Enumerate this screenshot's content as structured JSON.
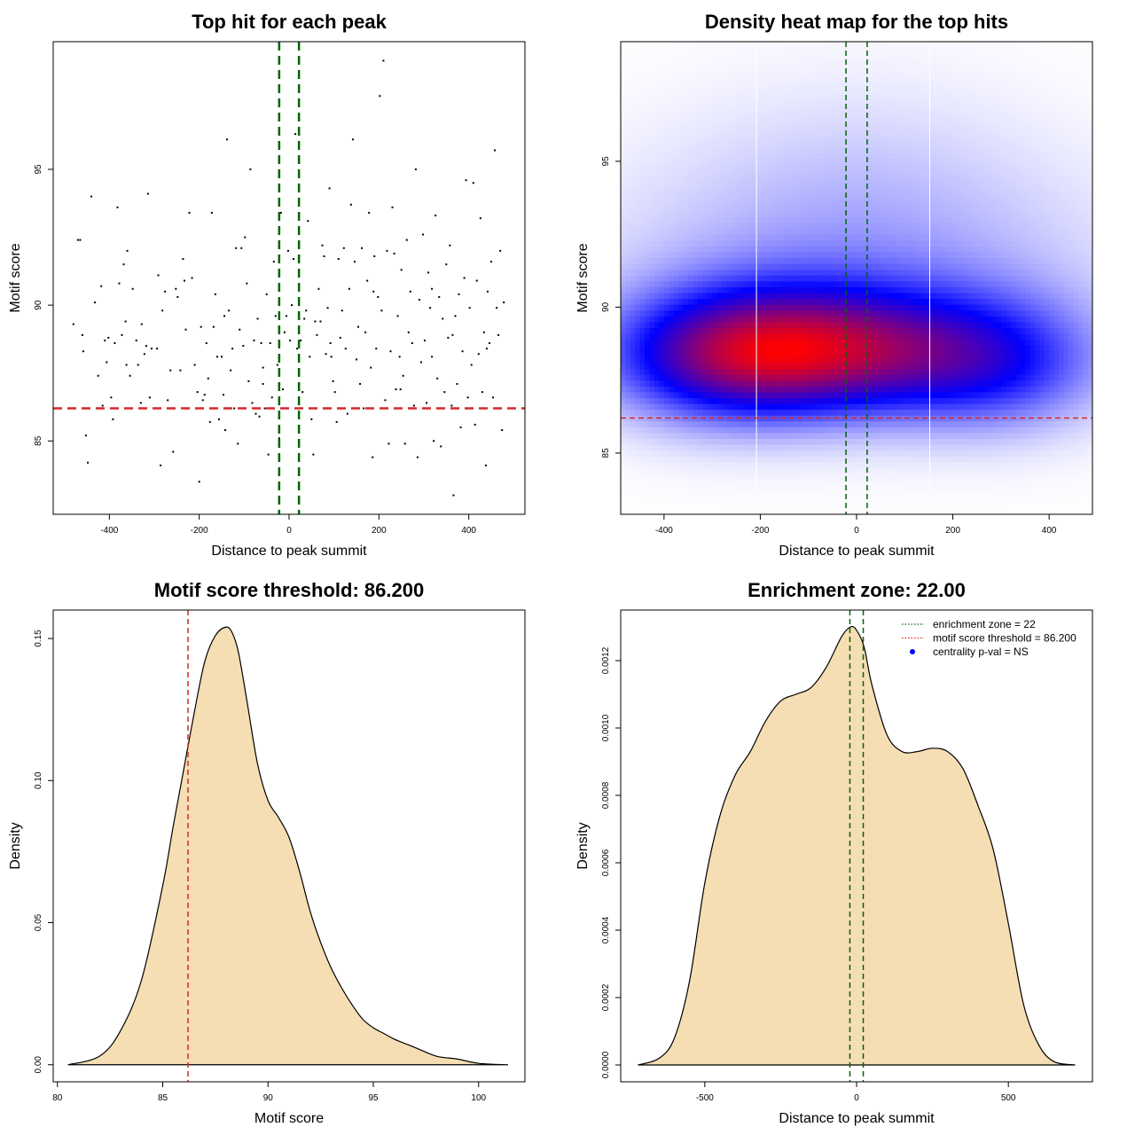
{
  "chart_data": [
    {
      "type": "scatter",
      "title": "Top hit for each peak",
      "xlabel": "Distance to peak summit",
      "ylabel": "Motif score",
      "xlim": [
        -525,
        525
      ],
      "ylim": [
        82.3,
        99.7
      ],
      "xticks": [
        -400,
        -200,
        0,
        200,
        400
      ],
      "yticks": [
        85,
        90,
        95
      ],
      "enrichment_zone_bounds": [
        -22,
        22
      ],
      "threshold": 86.2,
      "colors": {
        "points": "#000000",
        "zone": "#006400",
        "threshold": "#d62728"
      },
      "points": [
        [
          -480,
          89.3
        ],
        [
          -470,
          92.4
        ],
        [
          -465,
          92.4
        ],
        [
          -460,
          88.9
        ],
        [
          -458,
          88.3
        ],
        [
          -452,
          85.2
        ],
        [
          -448,
          84.2
        ],
        [
          -440,
          94.0
        ],
        [
          -432,
          90.1
        ],
        [
          -425,
          87.4
        ],
        [
          -418,
          90.7
        ],
        [
          -410,
          88.7
        ],
        [
          -406,
          87.9
        ],
        [
          -402,
          88.8
        ],
        [
          -396,
          86.6
        ],
        [
          -392,
          85.8
        ],
        [
          -388,
          88.6
        ],
        [
          -382,
          93.6
        ],
        [
          -378,
          90.8
        ],
        [
          -372,
          88.9
        ],
        [
          -368,
          91.5
        ],
        [
          -364,
          89.4
        ],
        [
          -360,
          92.0
        ],
        [
          -354,
          87.4
        ],
        [
          -348,
          90.6
        ],
        [
          -340,
          88.7
        ],
        [
          -336,
          87.8
        ],
        [
          -330,
          86.4
        ],
        [
          -328,
          89.3
        ],
        [
          -322,
          88.2
        ],
        [
          -318,
          88.5
        ],
        [
          -314,
          94.1
        ],
        [
          -310,
          86.6
        ],
        [
          -306,
          88.4
        ],
        [
          -300,
          86.2
        ],
        [
          -294,
          88.4
        ],
        [
          -286,
          84.1
        ],
        [
          -282,
          89.8
        ],
        [
          -276,
          90.5
        ],
        [
          -270,
          86.5
        ],
        [
          -264,
          87.6
        ],
        [
          -258,
          84.6
        ],
        [
          -252,
          90.6
        ],
        [
          -248,
          90.3
        ],
        [
          -242,
          87.6
        ],
        [
          -236,
          91.7
        ],
        [
          -230,
          89.1
        ],
        [
          -222,
          93.4
        ],
        [
          -216,
          91.0
        ],
        [
          -210,
          87.8
        ],
        [
          -204,
          86.8
        ],
        [
          -200,
          83.5
        ],
        [
          -196,
          89.2
        ],
        [
          -192,
          86.5
        ],
        [
          -188,
          86.7
        ],
        [
          -184,
          88.6
        ],
        [
          -180,
          87.3
        ],
        [
          -176,
          85.7
        ],
        [
          -172,
          93.4
        ],
        [
          -168,
          89.2
        ],
        [
          -164,
          90.4
        ],
        [
          -160,
          88.1
        ],
        [
          -156,
          85.8
        ],
        [
          -150,
          88.1
        ],
        [
          -146,
          86.7
        ],
        [
          -142,
          85.4
        ],
        [
          -138,
          96.1
        ],
        [
          -134,
          89.8
        ],
        [
          -130,
          87.6
        ],
        [
          -126,
          88.4
        ],
        [
          -122,
          86.2
        ],
        [
          -118,
          92.1
        ],
        [
          -114,
          84.9
        ],
        [
          -110,
          89.1
        ],
        [
          -106,
          92.1
        ],
        [
          -102,
          88.5
        ],
        [
          -98,
          92.5
        ],
        [
          -94,
          90.8
        ],
        [
          -90,
          87.2
        ],
        [
          -86,
          95.0
        ],
        [
          -82,
          86.4
        ],
        [
          -78,
          88.7
        ],
        [
          -74,
          86.0
        ],
        [
          -70,
          89.5
        ],
        [
          -66,
          85.9
        ],
        [
          -62,
          88.6
        ],
        [
          -58,
          87.1
        ],
        [
          -54,
          86.2
        ],
        [
          -50,
          90.4
        ],
        [
          -46,
          84.5
        ],
        [
          -42,
          88.6
        ],
        [
          -38,
          86.6
        ],
        [
          -34,
          91.6
        ],
        [
          -30,
          89.6
        ],
        [
          -26,
          87.8
        ],
        [
          -22,
          85.1
        ],
        [
          -18,
          93.4
        ],
        [
          -14,
          86.9
        ],
        [
          -10,
          89.0
        ],
        [
          -6,
          89.6
        ],
        [
          -2,
          92.0
        ],
        [
          2,
          88.7
        ],
        [
          6,
          90.0
        ],
        [
          10,
          91.7
        ],
        [
          14,
          96.3
        ],
        [
          18,
          88.4
        ],
        [
          22,
          90.0
        ],
        [
          26,
          88.7
        ],
        [
          30,
          86.8
        ],
        [
          34,
          89.5
        ],
        [
          38,
          89.8
        ],
        [
          42,
          93.1
        ],
        [
          46,
          88.1
        ],
        [
          50,
          85.8
        ],
        [
          54,
          84.5
        ],
        [
          58,
          89.4
        ],
        [
          62,
          88.9
        ],
        [
          66,
          90.6
        ],
        [
          70,
          89.4
        ],
        [
          74,
          92.2
        ],
        [
          78,
          91.8
        ],
        [
          82,
          88.2
        ],
        [
          86,
          89.9
        ],
        [
          90,
          94.3
        ],
        [
          94,
          88.1
        ],
        [
          98,
          87.2
        ],
        [
          102,
          86.8
        ],
        [
          106,
          85.7
        ],
        [
          110,
          91.7
        ],
        [
          114,
          88.8
        ],
        [
          118,
          89.8
        ],
        [
          122,
          92.1
        ],
        [
          126,
          88.4
        ],
        [
          130,
          86.0
        ],
        [
          134,
          90.6
        ],
        [
          138,
          93.7
        ],
        [
          142,
          96.1
        ],
        [
          146,
          91.6
        ],
        [
          150,
          88.0
        ],
        [
          154,
          89.2
        ],
        [
          158,
          87.1
        ],
        [
          162,
          92.1
        ],
        [
          166,
          86.2
        ],
        [
          170,
          89.0
        ],
        [
          174,
          90.9
        ],
        [
          178,
          93.4
        ],
        [
          182,
          87.7
        ],
        [
          186,
          84.4
        ],
        [
          190,
          91.8
        ],
        [
          194,
          88.4
        ],
        [
          198,
          90.3
        ],
        [
          202,
          97.7
        ],
        [
          206,
          89.8
        ],
        [
          210,
          99.0
        ],
        [
          214,
          86.5
        ],
        [
          218,
          92.0
        ],
        [
          222,
          84.9
        ],
        [
          226,
          88.3
        ],
        [
          230,
          93.6
        ],
        [
          234,
          91.9
        ],
        [
          238,
          86.9
        ],
        [
          242,
          89.6
        ],
        [
          246,
          88.1
        ],
        [
          250,
          91.3
        ],
        [
          254,
          87.4
        ],
        [
          258,
          84.9
        ],
        [
          262,
          92.4
        ],
        [
          266,
          89.0
        ],
        [
          270,
          90.5
        ],
        [
          274,
          88.6
        ],
        [
          278,
          86.3
        ],
        [
          282,
          95.0
        ],
        [
          286,
          84.4
        ],
        [
          290,
          90.2
        ],
        [
          294,
          87.9
        ],
        [
          298,
          92.6
        ],
        [
          302,
          88.7
        ],
        [
          306,
          86.4
        ],
        [
          310,
          91.2
        ],
        [
          314,
          89.9
        ],
        [
          318,
          88.1
        ],
        [
          322,
          85.0
        ],
        [
          326,
          93.3
        ],
        [
          330,
          87.3
        ],
        [
          334,
          90.3
        ],
        [
          338,
          84.8
        ],
        [
          342,
          89.5
        ],
        [
          346,
          86.8
        ],
        [
          350,
          91.5
        ],
        [
          354,
          88.8
        ],
        [
          358,
          92.2
        ],
        [
          362,
          86.3
        ],
        [
          366,
          83.0
        ],
        [
          370,
          89.6
        ],
        [
          374,
          87.1
        ],
        [
          378,
          90.4
        ],
        [
          382,
          85.5
        ],
        [
          386,
          88.3
        ],
        [
          390,
          91.0
        ],
        [
          394,
          94.6
        ],
        [
          398,
          86.6
        ],
        [
          402,
          89.9
        ],
        [
          406,
          87.8
        ],
        [
          410,
          94.5
        ],
        [
          414,
          85.6
        ],
        [
          418,
          90.9
        ],
        [
          422,
          88.2
        ],
        [
          426,
          93.2
        ],
        [
          430,
          86.8
        ],
        [
          434,
          89.0
        ],
        [
          438,
          84.1
        ],
        [
          442,
          90.5
        ],
        [
          446,
          88.6
        ],
        [
          450,
          91.6
        ],
        [
          454,
          86.6
        ],
        [
          458,
          95.7
        ],
        [
          462,
          89.9
        ],
        [
          466,
          88.9
        ],
        [
          470,
          92.0
        ],
        [
          474,
          85.4
        ],
        [
          478,
          90.1
        ],
        [
          -415,
          86.3
        ],
        [
          -362,
          87.8
        ],
        [
          -291,
          91.1
        ],
        [
          -233,
          90.9
        ],
        [
          -144,
          89.6
        ],
        [
          -58,
          87.7
        ],
        [
          92,
          88.6
        ],
        [
          188,
          90.5
        ],
        [
          248,
          86.9
        ],
        [
          318,
          90.6
        ],
        [
          364,
          88.9
        ],
        [
          440,
          88.4
        ]
      ]
    },
    {
      "type": "heatmap",
      "title": "Density heat map for the top hits",
      "xlabel": "Distance to peak summit",
      "ylabel": "Motif score",
      "xlim": [
        -490,
        490
      ],
      "ylim": [
        82.9,
        99.1
      ],
      "xticks": [
        -400,
        -200,
        0,
        200,
        400
      ],
      "yticks": [
        85,
        90,
        95
      ],
      "enrichment_zone_bounds": [
        -22,
        22
      ],
      "threshold": 86.2,
      "white_lines_x": [
        -208,
        152
      ],
      "colors": {
        "low": "#ffffff",
        "mid": "#0000ff",
        "high": "#ff0000",
        "zone": "#006400",
        "threshold": "#d62728"
      }
    },
    {
      "type": "area",
      "title": "Motif score threshold: 86.200",
      "xlabel": "Motif score",
      "ylabel": "Density",
      "xlim": [
        79.8,
        102.2
      ],
      "ylim": [
        -0.006,
        0.16
      ],
      "xticks": [
        80,
        85,
        90,
        95,
        100
      ],
      "yticks": [
        0.0,
        0.05,
        0.1,
        0.15
      ],
      "ytick_labels": [
        "0.00",
        "0.05",
        "0.10",
        "0.15"
      ],
      "threshold": 86.2,
      "colors": {
        "fill": "#f5deb3",
        "line": "#000000",
        "threshold": "#d62728"
      },
      "x": [
        80.5,
        82,
        83,
        84,
        85,
        85.5,
        86,
        86.5,
        87,
        87.5,
        88,
        88.3,
        88.6,
        89,
        89.5,
        90,
        90.5,
        91,
        91.5,
        92,
        92.5,
        93,
        93.5,
        94,
        94.5,
        95,
        95.5,
        96,
        97,
        98,
        99,
        100,
        101.4
      ],
      "y": [
        0.0,
        0.003,
        0.012,
        0.03,
        0.063,
        0.084,
        0.104,
        0.124,
        0.142,
        0.151,
        0.154,
        0.152,
        0.145,
        0.128,
        0.106,
        0.093,
        0.087,
        0.08,
        0.068,
        0.054,
        0.043,
        0.034,
        0.027,
        0.021,
        0.016,
        0.013,
        0.011,
        0.009,
        0.006,
        0.003,
        0.002,
        0.0005,
        0.0
      ]
    },
    {
      "type": "area",
      "title": "Enrichment zone: 22.00",
      "xlabel": "Distance to peak summit",
      "ylabel": "Density",
      "xlim": [
        -777,
        777
      ],
      "ylim": [
        -5e-05,
        0.00135
      ],
      "xticks": [
        -500,
        0,
        500
      ],
      "yticks": [
        0.0,
        0.0002,
        0.0004,
        0.0006,
        0.0008,
        0.001,
        0.0012
      ],
      "ytick_labels": [
        "0.0000",
        "0.0002",
        "0.0004",
        "0.0006",
        "0.0008",
        "0.0010",
        "0.0012"
      ],
      "enrichment_zone_bounds": [
        -22,
        22
      ],
      "colors": {
        "fill": "#f5deb3",
        "line": "#000000",
        "zone": "#006400",
        "threshold": "#d62728",
        "pval": "#0000ff"
      },
      "x": [
        -720,
        -650,
        -600,
        -550,
        -500,
        -450,
        -400,
        -350,
        -300,
        -250,
        -200,
        -150,
        -100,
        -50,
        -20,
        0,
        25,
        50,
        100,
        150,
        200,
        250,
        300,
        350,
        400,
        450,
        500,
        550,
        600,
        650,
        720
      ],
      "y": [
        0.0,
        2e-05,
        8e-05,
        0.00025,
        0.00054,
        0.00074,
        0.00086,
        0.00093,
        0.00102,
        0.00108,
        0.0011,
        0.00112,
        0.00118,
        0.00127,
        0.0013,
        0.00129,
        0.00124,
        0.00113,
        0.00098,
        0.00093,
        0.00093,
        0.00094,
        0.00093,
        0.00088,
        0.00077,
        0.00064,
        0.00042,
        0.00018,
        6e-05,
        1e-05,
        0.0
      ]
    }
  ],
  "legend": {
    "items": [
      {
        "label": "enrichment zone = 22",
        "color": "#006400",
        "style": "dotted-line"
      },
      {
        "label": "motif score threshold = 86.200",
        "color": "#d62728",
        "style": "dotted-line"
      },
      {
        "label": "centrality p-val = NS",
        "color": "#0000ff",
        "style": "dot"
      }
    ]
  }
}
